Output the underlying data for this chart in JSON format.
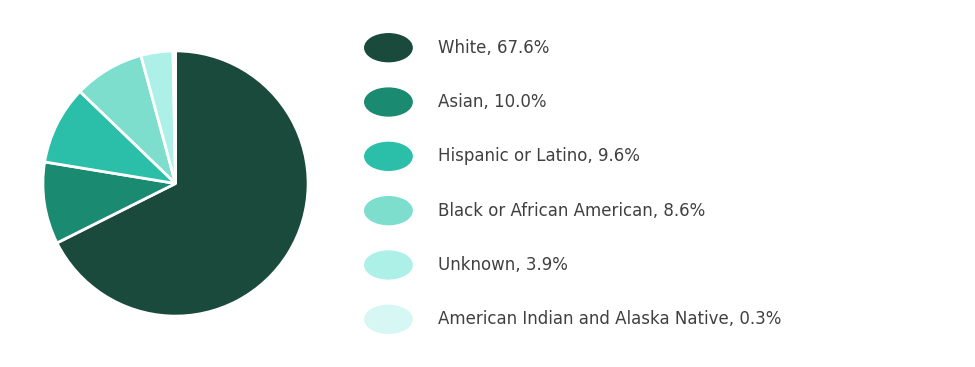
{
  "labels": [
    "White",
    "Asian",
    "Hispanic or Latino",
    "Black or African American",
    "Unknown",
    "American Indian and Alaska Native"
  ],
  "values": [
    67.6,
    10.0,
    9.6,
    8.6,
    3.9,
    0.3
  ],
  "colors": [
    "#1a4a3c",
    "#1a8a70",
    "#2bbfaa",
    "#7ddece",
    "#adf0e8",
    "#d6f7f3"
  ],
  "legend_labels": [
    "White, 67.6%",
    "Asian, 10.0%",
    "Hispanic or Latino, 9.6%",
    "Black or African American, 8.6%",
    "Unknown, 3.9%",
    "American Indian and Alaska Native, 0.3%"
  ],
  "background_color": "#ffffff",
  "text_color": "#404040",
  "startangle": 90,
  "wedge_edge_color": "#ffffff"
}
